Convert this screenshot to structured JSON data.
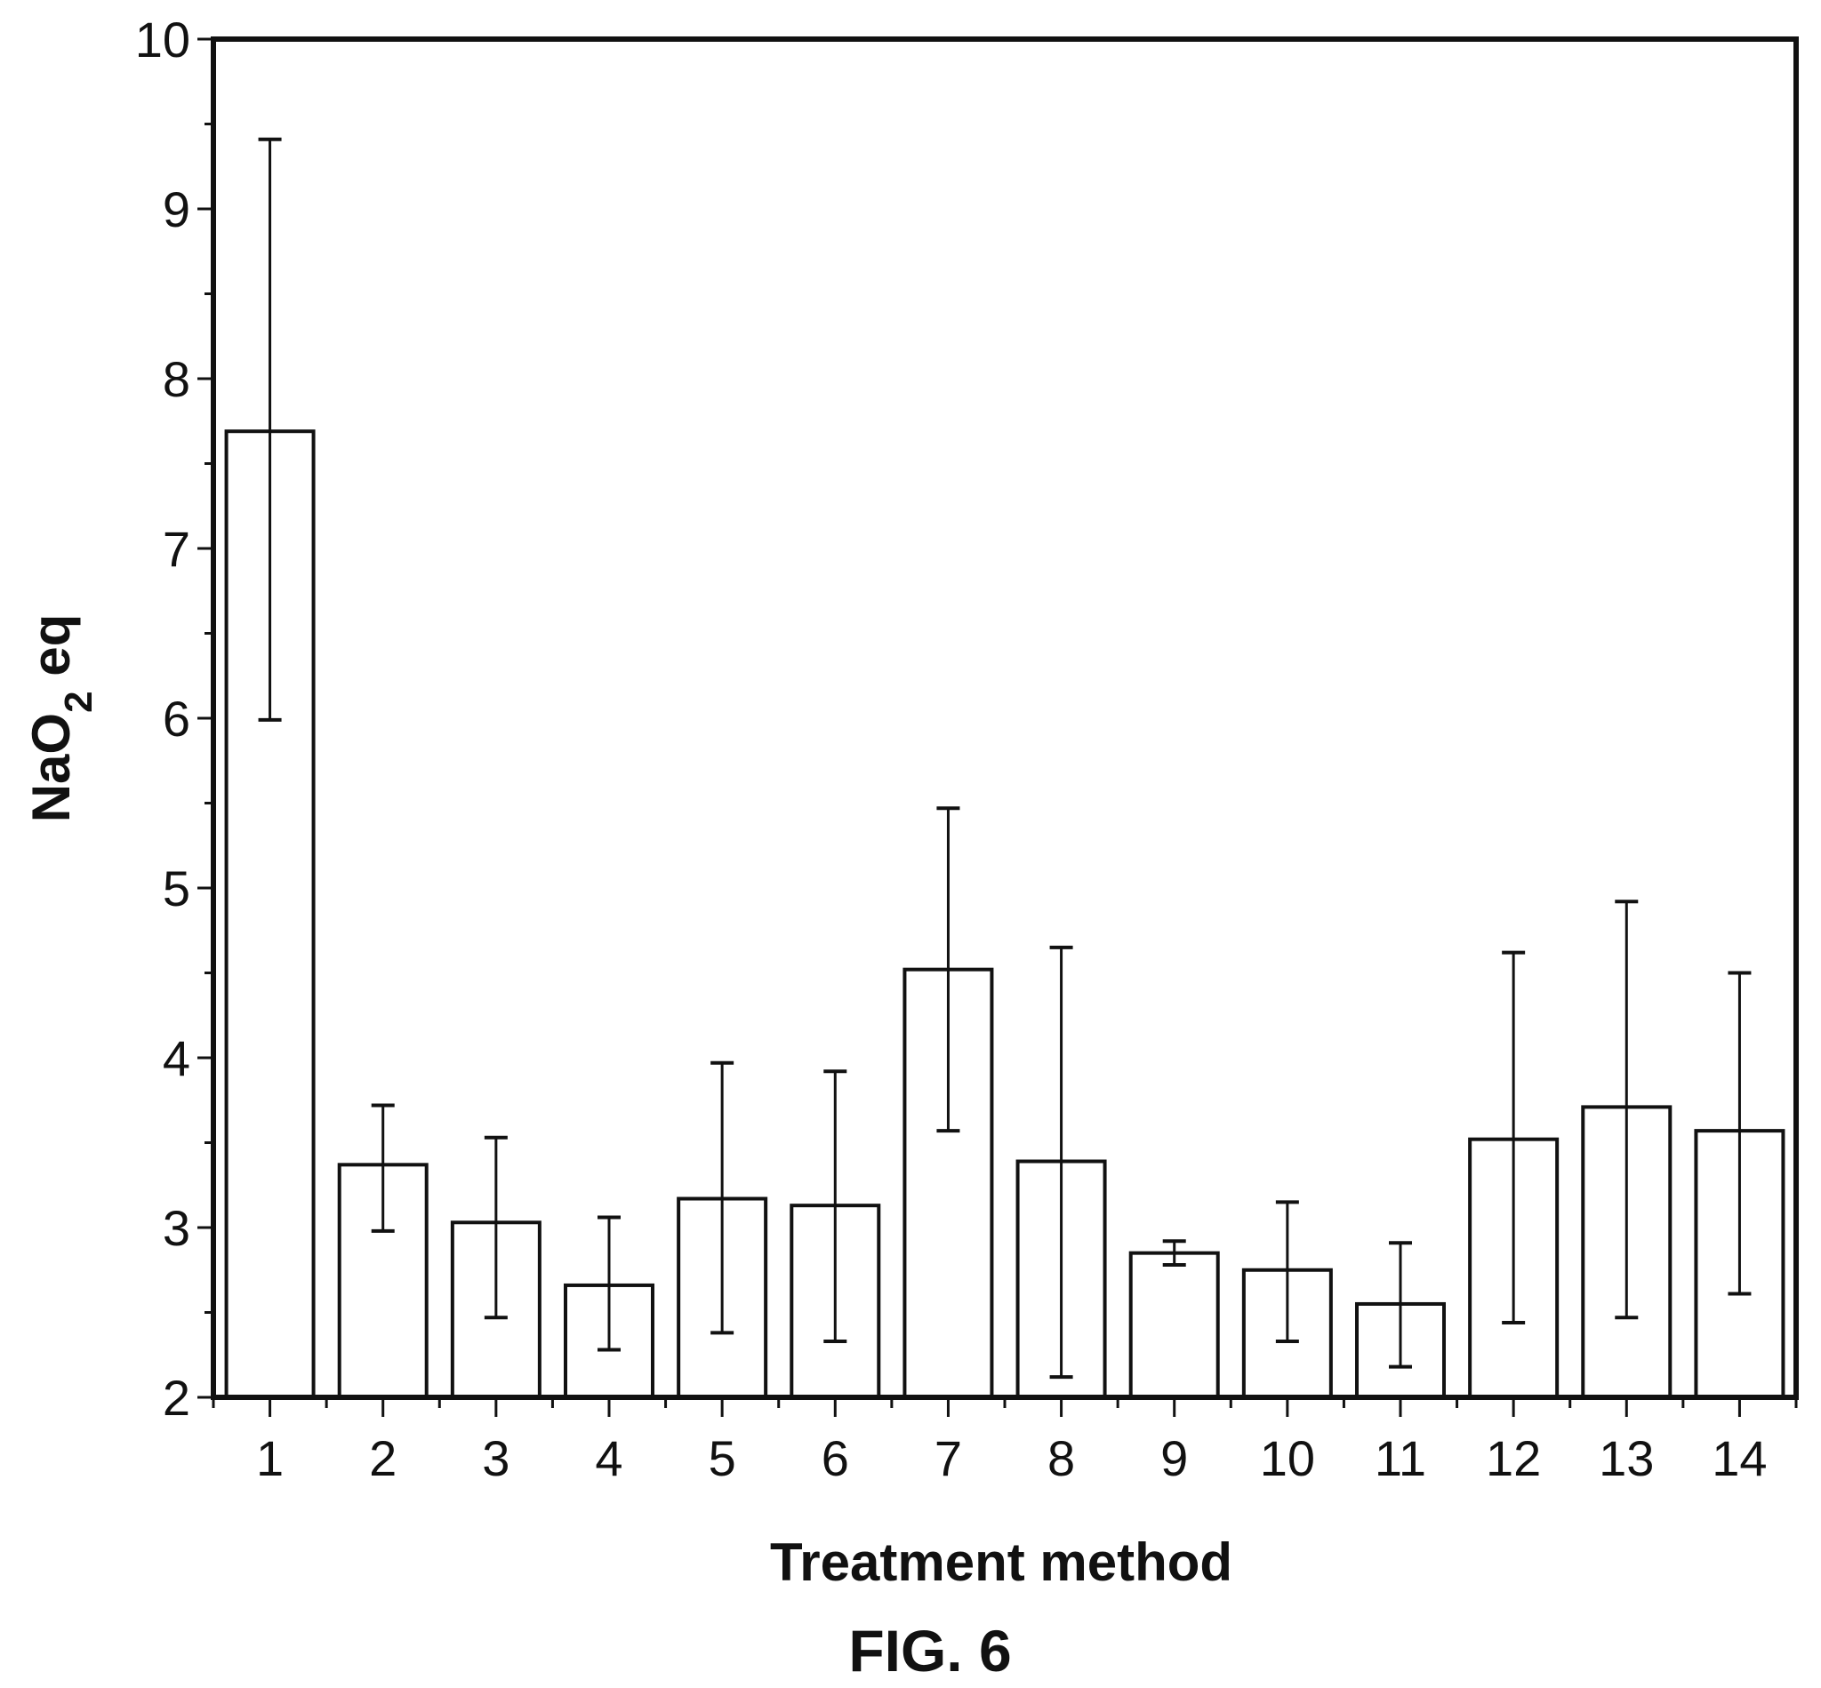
{
  "chart_data": {
    "type": "bar",
    "xlabel": "Treatment method",
    "ylabel_main": "NaO",
    "ylabel_sub": "2",
    "ylabel_tail": " eq",
    "figure_label": "FIG. 6",
    "ylim": [
      2,
      10
    ],
    "y_ticks": [
      "2",
      "3",
      "4",
      "5",
      "6",
      "7",
      "8",
      "9",
      "10"
    ],
    "categories": [
      "1",
      "2",
      "3",
      "4",
      "5",
      "6",
      "7",
      "8",
      "9",
      "10",
      "11",
      "12",
      "13",
      "14"
    ],
    "values": [
      7.69,
      3.37,
      3.03,
      2.66,
      3.17,
      3.13,
      4.52,
      3.39,
      2.85,
      2.75,
      2.55,
      3.52,
      3.71,
      3.57
    ],
    "error_low": [
      5.99,
      2.98,
      2.47,
      2.28,
      2.38,
      2.33,
      3.57,
      2.12,
      2.78,
      2.33,
      2.18,
      2.44,
      2.47,
      2.61
    ],
    "error_high": [
      9.41,
      3.72,
      3.53,
      3.06,
      3.97,
      3.92,
      5.47,
      4.65,
      2.92,
      3.15,
      2.91,
      4.62,
      4.92,
      4.5
    ],
    "grid": false,
    "legend": "none",
    "bar_fill": "#ffffff",
    "stroke_color": "#111111"
  }
}
